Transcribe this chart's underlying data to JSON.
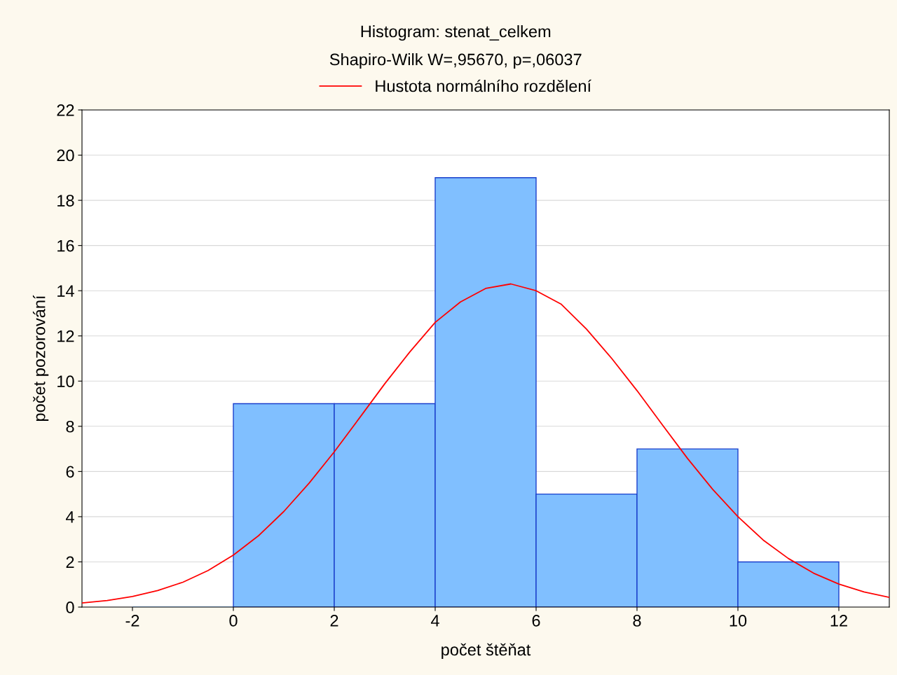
{
  "chart_data": {
    "type": "histogram",
    "title": "Histogram: stenat_celkem",
    "subtitle": "Shapiro-Wilk W=,95670, p=,06037",
    "xlabel": "počet štěňat",
    "ylabel": "počet pozorování",
    "bins": [
      -2,
      0,
      2,
      4,
      6,
      8,
      10,
      12
    ],
    "values": [
      0,
      9,
      9,
      19,
      5,
      7,
      2
    ],
    "color": "#80bfff",
    "series": [
      {
        "type": "line",
        "name": "Hustota normálního rozdělení",
        "color": "#ff0000",
        "x": [
          -3,
          -2.5,
          -2,
          -1.5,
          -1,
          -0.5,
          0,
          0.5,
          1,
          1.5,
          2,
          2.5,
          3,
          3.5,
          4,
          4.5,
          5,
          5.5,
          6,
          6.5,
          7,
          7.5,
          8,
          8.5,
          9,
          9.5,
          10,
          10.5,
          11,
          11.5,
          12,
          12.5,
          13
        ],
        "values": [
          0.18,
          0.29,
          0.47,
          0.73,
          1.1,
          1.62,
          2.3,
          3.16,
          4.23,
          5.48,
          6.87,
          8.37,
          9.88,
          11.3,
          12.6,
          13.5,
          14.1,
          14.3,
          14.0,
          13.4,
          12.3,
          11.0,
          9.58,
          8.07,
          6.58,
          5.21,
          4.0,
          2.97,
          2.15,
          1.5,
          1.02,
          0.67,
          0.43
        ]
      }
    ],
    "xlim": [
      -3,
      13
    ],
    "xticks": [
      -2,
      0,
      2,
      4,
      6,
      8,
      10,
      12
    ],
    "ylim": [
      0,
      22
    ],
    "yticks": [
      0,
      2,
      4,
      6,
      8,
      10,
      12,
      14,
      16,
      18,
      20,
      22
    ],
    "grid": "y",
    "legend": "top"
  }
}
